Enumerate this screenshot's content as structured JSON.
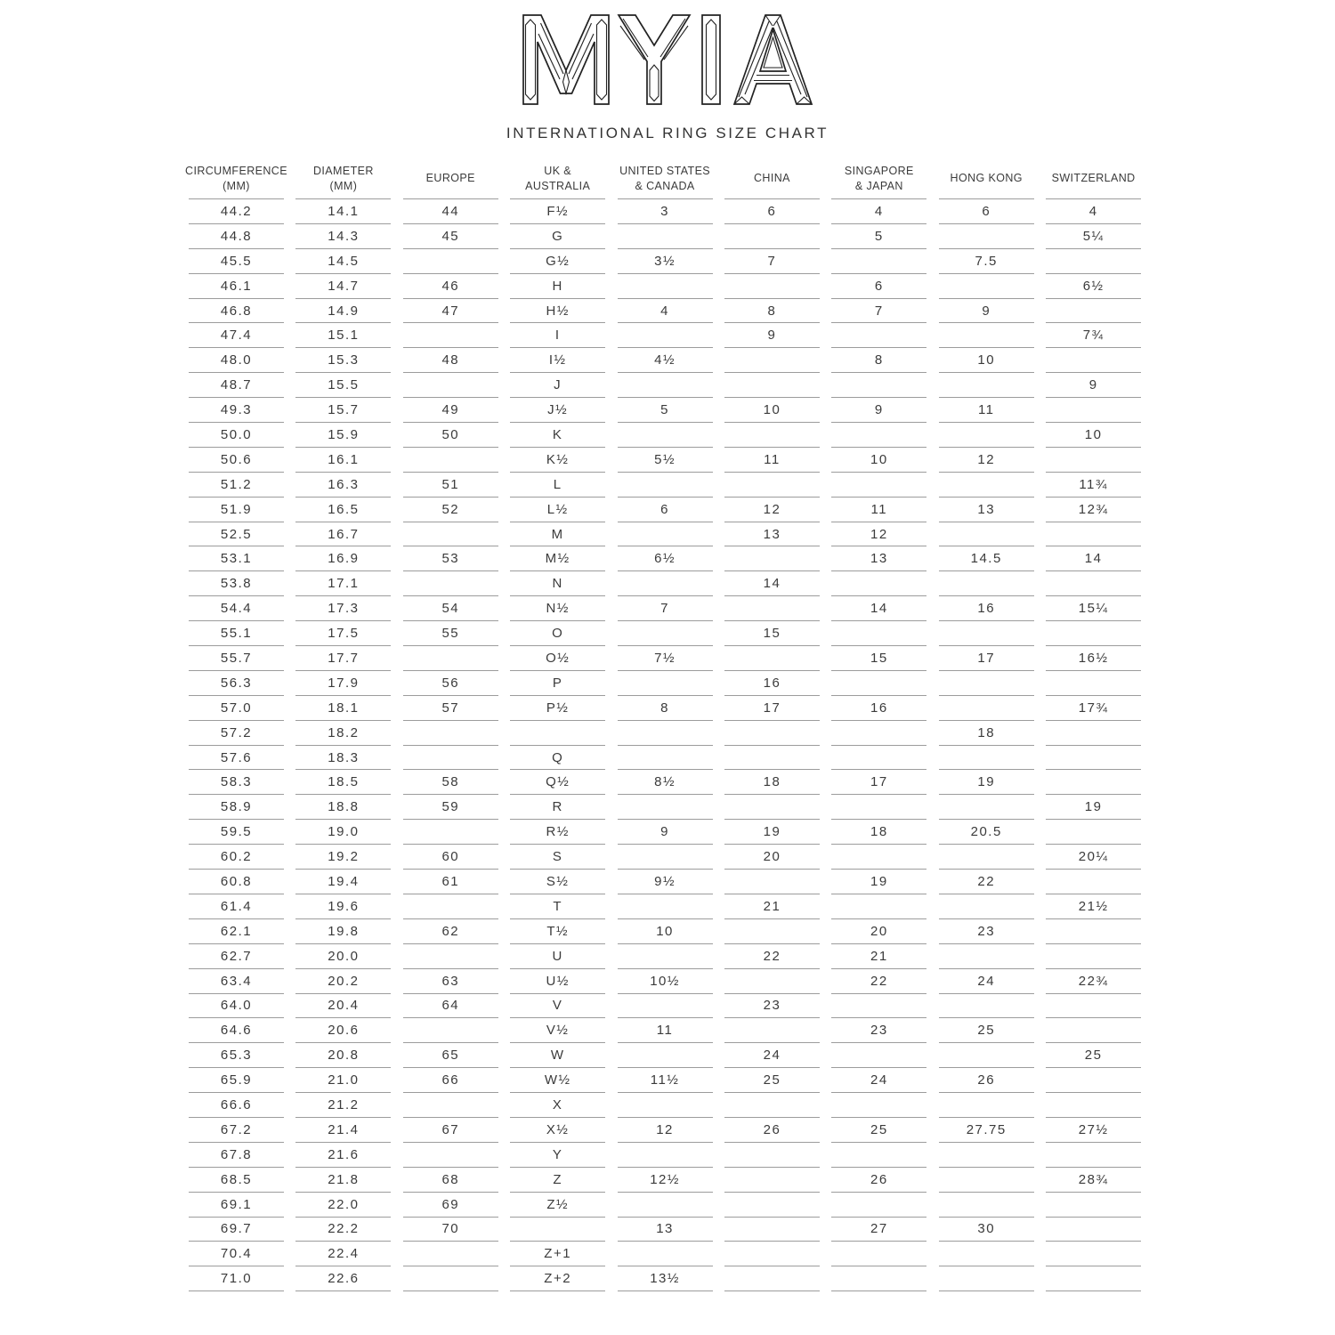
{
  "header": {
    "brand": "MYIA",
    "title": "INTERNATIONAL RING SIZE CHART"
  },
  "colors": {
    "text": "#3b3b3b",
    "line": "#9c9c9c",
    "logo": "#222222",
    "background": "#ffffff"
  },
  "table": {
    "columns": [
      {
        "id": "circumference",
        "label": "CIRCUMFERENCE\n(MM)"
      },
      {
        "id": "diameter",
        "label": "DIAMETER\n(MM)"
      },
      {
        "id": "europe",
        "label": "EUROPE"
      },
      {
        "id": "uk-australia",
        "label": "UK &\nAUSTRALIA"
      },
      {
        "id": "us-canada",
        "label": "UNITED STATES\n& CANADA"
      },
      {
        "id": "china",
        "label": "CHINA"
      },
      {
        "id": "singapore-japan",
        "label": "SINGAPORE\n& JAPAN"
      },
      {
        "id": "hong-kong",
        "label": "HONG KONG"
      },
      {
        "id": "switzerland",
        "label": "SWITZERLAND"
      }
    ],
    "rows": [
      [
        "44.2",
        "14.1",
        "44",
        "F½",
        "3",
        "6",
        "4",
        "6",
        "4"
      ],
      [
        "44.8",
        "14.3",
        "45",
        "G",
        "",
        "",
        "5",
        "",
        "5¼"
      ],
      [
        "45.5",
        "14.5",
        "",
        "G½",
        "3½",
        "7",
        "",
        "7.5",
        ""
      ],
      [
        "46.1",
        "14.7",
        "46",
        "H",
        "",
        "",
        "6",
        "",
        "6½"
      ],
      [
        "46.8",
        "14.9",
        "47",
        "H½",
        "4",
        "8",
        "7",
        "9",
        ""
      ],
      [
        "47.4",
        "15.1",
        "",
        "I",
        "",
        "9",
        "",
        "",
        "7¾"
      ],
      [
        "48.0",
        "15.3",
        "48",
        "I½",
        "4½",
        "",
        "8",
        "10",
        ""
      ],
      [
        "48.7",
        "15.5",
        "",
        "J",
        "",
        "",
        "",
        "",
        "9"
      ],
      [
        "49.3",
        "15.7",
        "49",
        "J½",
        "5",
        "10",
        "9",
        "11",
        ""
      ],
      [
        "50.0",
        "15.9",
        "50",
        "K",
        "",
        "",
        "",
        "",
        "10"
      ],
      [
        "50.6",
        "16.1",
        "",
        "K½",
        "5½",
        "11",
        "10",
        "12",
        ""
      ],
      [
        "51.2",
        "16.3",
        "51",
        "L",
        "",
        "",
        "",
        "",
        "11¾"
      ],
      [
        "51.9",
        "16.5",
        "52",
        "L½",
        "6",
        "12",
        "11",
        "13",
        "12¾"
      ],
      [
        "52.5",
        "16.7",
        "",
        "M",
        "",
        "13",
        "12",
        "",
        ""
      ],
      [
        "53.1",
        "16.9",
        "53",
        "M½",
        "6½",
        "",
        "13",
        "14.5",
        "14"
      ],
      [
        "53.8",
        "17.1",
        "",
        "N",
        "",
        "14",
        "",
        "",
        ""
      ],
      [
        "54.4",
        "17.3",
        "54",
        "N½",
        "7",
        "",
        "14",
        "16",
        "15¼"
      ],
      [
        "55.1",
        "17.5",
        "55",
        "O",
        "",
        "15",
        "",
        "",
        ""
      ],
      [
        "55.7",
        "17.7",
        "",
        "O½",
        "7½",
        "",
        "15",
        "17",
        "16½"
      ],
      [
        "56.3",
        "17.9",
        "56",
        "P",
        "",
        "16",
        "",
        "",
        ""
      ],
      [
        "57.0",
        "18.1",
        "57",
        "P½",
        "8",
        "17",
        "16",
        "",
        "17¾"
      ],
      [
        "57.2",
        "18.2",
        "",
        "",
        "",
        "",
        "",
        "18",
        ""
      ],
      [
        "57.6",
        "18.3",
        "",
        "Q",
        "",
        "",
        "",
        "",
        ""
      ],
      [
        "58.3",
        "18.5",
        "58",
        "Q½",
        "8½",
        "18",
        "17",
        "19",
        ""
      ],
      [
        "58.9",
        "18.8",
        "59",
        "R",
        "",
        "",
        "",
        "",
        "19"
      ],
      [
        "59.5",
        "19.0",
        "",
        "R½",
        "9",
        "19",
        "18",
        "20.5",
        ""
      ],
      [
        "60.2",
        "19.2",
        "60",
        "S",
        "",
        "20",
        "",
        "",
        "20¼"
      ],
      [
        "60.8",
        "19.4",
        "61",
        "S½",
        "9½",
        "",
        "19",
        "22",
        ""
      ],
      [
        "61.4",
        "19.6",
        "",
        "T",
        "",
        "21",
        "",
        "",
        "21½"
      ],
      [
        "62.1",
        "19.8",
        "62",
        "T½",
        "10",
        "",
        "20",
        "23",
        ""
      ],
      [
        "62.7",
        "20.0",
        "",
        "U",
        "",
        "22",
        "21",
        "",
        ""
      ],
      [
        "63.4",
        "20.2",
        "63",
        "U½",
        "10½",
        "",
        "22",
        "24",
        "22¾"
      ],
      [
        "64.0",
        "20.4",
        "64",
        "V",
        "",
        "23",
        "",
        "",
        ""
      ],
      [
        "64.6",
        "20.6",
        "",
        "V½",
        "11",
        "",
        "23",
        "25",
        ""
      ],
      [
        "65.3",
        "20.8",
        "65",
        "W",
        "",
        "24",
        "",
        "",
        "25"
      ],
      [
        "65.9",
        "21.0",
        "66",
        "W½",
        "11½",
        "25",
        "24",
        "26",
        ""
      ],
      [
        "66.6",
        "21.2",
        "",
        "X",
        "",
        "",
        "",
        "",
        ""
      ],
      [
        "67.2",
        "21.4",
        "67",
        "X½",
        "12",
        "26",
        "25",
        "27.75",
        "27½"
      ],
      [
        "67.8",
        "21.6",
        "",
        "Y",
        "",
        "",
        "",
        "",
        ""
      ],
      [
        "68.5",
        "21.8",
        "68",
        "Z",
        "12½",
        "",
        "26",
        "",
        "28¾"
      ],
      [
        "69.1",
        "22.0",
        "69",
        "Z½",
        "",
        "",
        "",
        "",
        ""
      ],
      [
        "69.7",
        "22.2",
        "70",
        "",
        "13",
        "",
        "27",
        "30",
        ""
      ],
      [
        "70.4",
        "22.4",
        "",
        "Z+1",
        "",
        "",
        "",
        "",
        ""
      ],
      [
        "71.0",
        "22.6",
        "",
        "Z+2",
        "13½",
        "",
        "",
        "",
        ""
      ]
    ]
  }
}
